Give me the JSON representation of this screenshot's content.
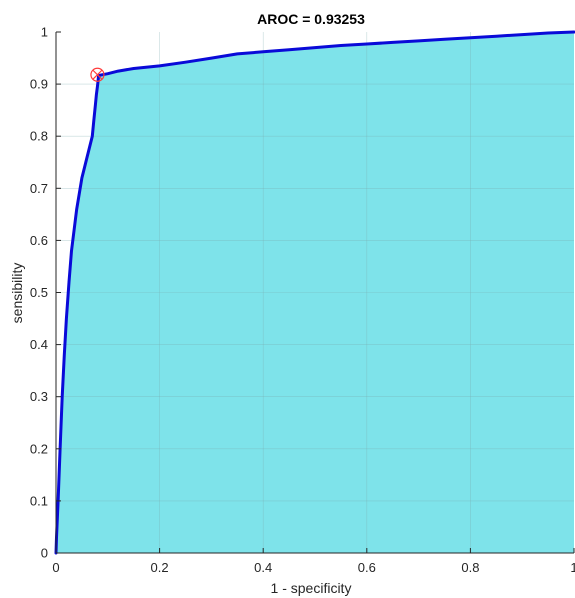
{
  "chart_data": {
    "type": "area",
    "title": "AROC = 0.93253",
    "xlabel": "1 - specificity",
    "ylabel": "sensibility",
    "xlim": [
      0,
      1
    ],
    "ylim": [
      0,
      1
    ],
    "x_ticks": [
      0,
      0.2,
      0.4,
      0.6,
      0.8,
      1
    ],
    "x_tick_labels": [
      "0",
      "0.2",
      "0.4",
      "0.6",
      "0.8",
      "1"
    ],
    "y_ticks": [
      0,
      0.1,
      0.2,
      0.3,
      0.4,
      0.5,
      0.6,
      0.7,
      0.8,
      0.9,
      1
    ],
    "y_tick_labels": [
      "0",
      "0.1",
      "0.2",
      "0.3",
      "0.4",
      "0.5",
      "0.6",
      "0.7",
      "0.8",
      "0.9",
      "1"
    ],
    "grid": true,
    "series": [
      {
        "x": [
          0,
          0.001,
          0.004,
          0.008,
          0.012,
          0.016,
          0.02,
          0.025,
          0.03,
          0.035,
          0.04,
          0.045,
          0.05,
          0.055,
          0.06,
          0.065,
          0.07,
          0.073,
          0.076,
          0.078,
          0.08,
          0.081,
          0.082,
          0.085,
          0.09,
          0.1,
          0.12,
          0.15,
          0.2,
          0.25,
          0.3,
          0.35,
          0.4,
          0.45,
          0.5,
          0.55,
          0.6,
          0.65,
          0.7,
          0.75,
          0.8,
          0.85,
          0.9,
          0.95,
          1.0
        ],
        "y": [
          0,
          0.03,
          0.1,
          0.2,
          0.3,
          0.38,
          0.45,
          0.52,
          0.58,
          0.62,
          0.66,
          0.69,
          0.72,
          0.74,
          0.76,
          0.78,
          0.8,
          0.83,
          0.86,
          0.88,
          0.895,
          0.905,
          0.915,
          0.917,
          0.918,
          0.92,
          0.925,
          0.93,
          0.935,
          0.942,
          0.95,
          0.958,
          0.962,
          0.966,
          0.97,
          0.974,
          0.977,
          0.98,
          0.983,
          0.986,
          0.989,
          0.992,
          0.995,
          0.998,
          1.0
        ]
      }
    ],
    "marker": {
      "x": 0.08,
      "y": 0.918
    },
    "colors": {
      "fill": "#7ee3ea",
      "line": "#0a0ad8",
      "marker": "#ff3b3b",
      "axis": "#262626",
      "grid": "#7aa9ad"
    }
  }
}
